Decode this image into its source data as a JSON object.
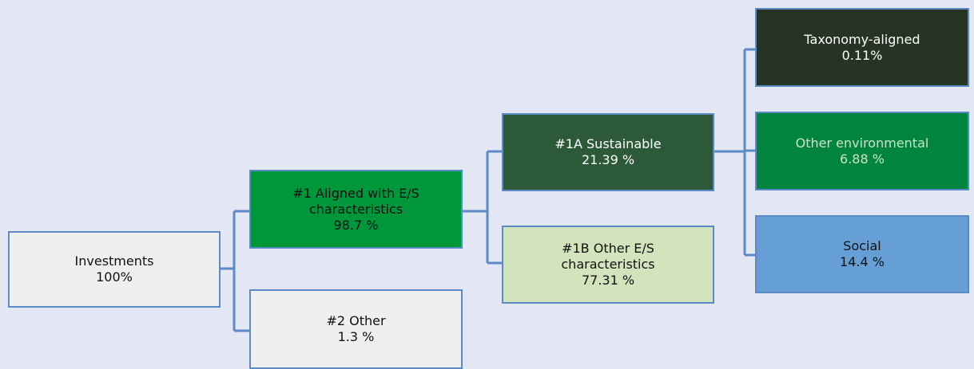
{
  "nodes": [
    {
      "lines": [
        "Investments",
        "100%"
      ]
    },
    {
      "lines": [
        "#1 Aligned with E/S",
        "characteristics",
        "98.7 %"
      ]
    },
    {
      "lines": [
        "#2 Other",
        "1.3 %"
      ]
    },
    {
      "lines": [
        "#1A Sustainable",
        "21.39 %"
      ]
    },
    {
      "lines": [
        "#1B Other E/S",
        "characteristics",
        "77.31 %"
      ]
    },
    {
      "lines": [
        "Taxonomy-aligned",
        "0.11%"
      ]
    },
    {
      "lines": [
        "Other environmental",
        "6.88 %"
      ]
    },
    {
      "lines": [
        "Social",
        "14.4 %"
      ]
    }
  ]
}
